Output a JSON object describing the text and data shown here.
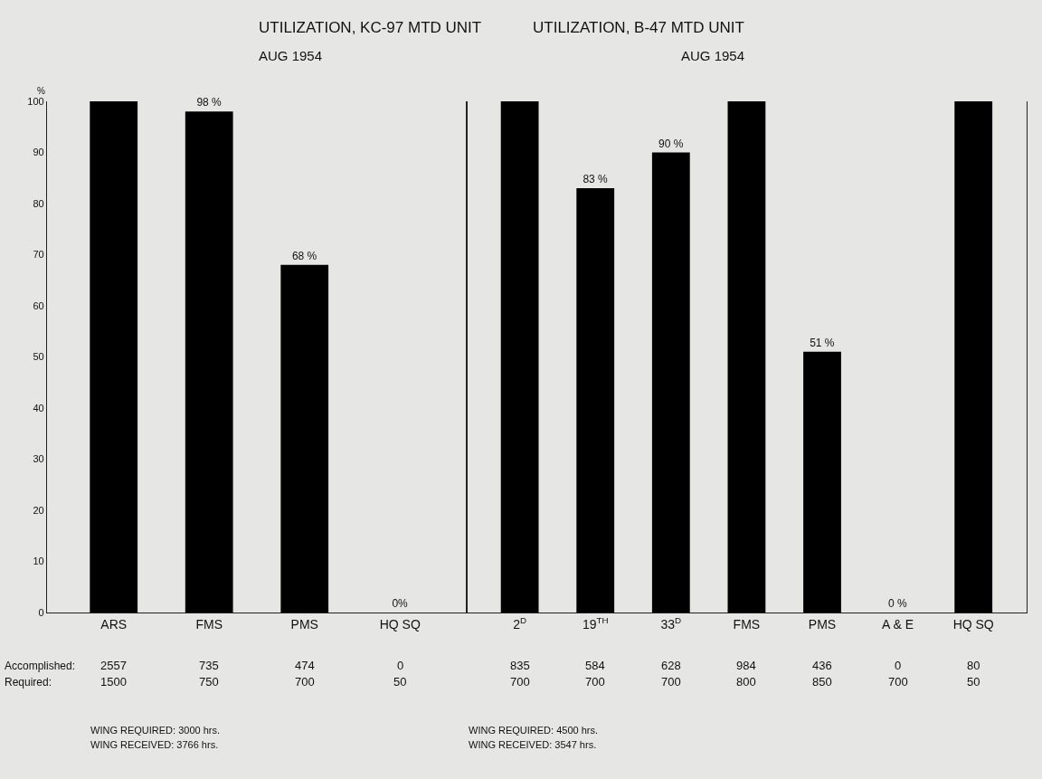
{
  "chart_data": [
    {
      "type": "bar",
      "title": "UTILIZATION, KC-97 MTD UNIT",
      "subtitle": "AUG 1954",
      "ylabel": "%",
      "categories": [
        "ARS",
        "FMS",
        "PMS",
        "HQ SQ"
      ],
      "values": [
        100,
        98,
        68,
        0
      ],
      "color": "#000000",
      "value_labels": [
        null,
        "98 %",
        "68 %",
        "0%"
      ],
      "ylim": [
        0,
        100
      ],
      "yticks": [
        0,
        10,
        20,
        30,
        40,
        50,
        60,
        70,
        80,
        90,
        100
      ],
      "grid": false,
      "legend": false,
      "annotations": [
        "Accomplished:",
        "2557",
        "735",
        "474",
        "0",
        "Required:",
        "1500",
        "750",
        "700",
        "50",
        "WING REQUIRED: 3000 hrs.",
        "WING RECEIVED: 3766 hrs."
      ]
    },
    {
      "type": "bar",
      "title": "UTILIZATION, B-47 MTD UNIT",
      "subtitle": "AUG 1954",
      "categories": [
        "2$^{D}$",
        "19$^{TH}$",
        "33$^{D}$",
        "FMS",
        "PMS",
        "A & E",
        "HQ SQ"
      ],
      "values": [
        100,
        83,
        90,
        100,
        51,
        0,
        100
      ],
      "color": "#000000",
      "value_labels": [
        null,
        "83 %",
        "90 %",
        null,
        "51 %",
        "0 %",
        null
      ],
      "ylim": [
        0,
        100
      ],
      "tick_labels": "x",
      "grid": false,
      "legend": false,
      "annotations": [
        "835",
        "584",
        "628",
        "984",
        "436",
        "0",
        "80",
        "700",
        "700",
        "700",
        "800",
        "850",
        "700",
        "50",
        "WING REQUIRED: 4500 hrs.",
        "WING RECEIVED: 3547 hrs."
      ]
    }
  ]
}
